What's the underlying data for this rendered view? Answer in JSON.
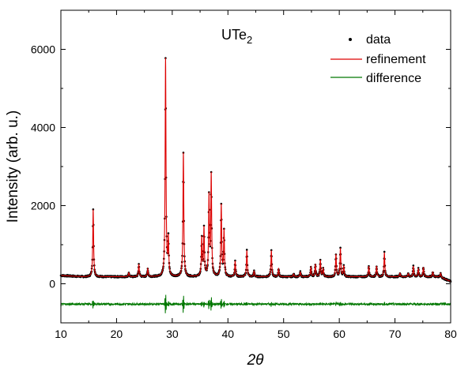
{
  "chart_data": {
    "type": "line",
    "title": "",
    "annotation": {
      "text": "UTe",
      "subscript": "2"
    },
    "xlabel": "2θ",
    "ylabel": "Intensity (arb. u.)",
    "xlim": [
      10,
      80
    ],
    "ylim": [
      -1000,
      7000
    ],
    "xticks": [
      10,
      20,
      30,
      40,
      50,
      60,
      70,
      80
    ],
    "yticks": [
      0,
      2000,
      4000,
      6000
    ],
    "legend_position": "top-right",
    "grid": false,
    "colors": {
      "data": "#000000",
      "refinement": "#dd0000",
      "difference": "#007700"
    },
    "background": 180,
    "difference_offset": -520,
    "peaks": [
      {
        "x": 15.8,
        "y": 1900
      },
      {
        "x": 22.2,
        "y": 280
      },
      {
        "x": 24.0,
        "y": 500
      },
      {
        "x": 25.6,
        "y": 380
      },
      {
        "x": 28.8,
        "y": 5750
      },
      {
        "x": 29.3,
        "y": 1100
      },
      {
        "x": 32.0,
        "y": 3350
      },
      {
        "x": 35.3,
        "y": 1150
      },
      {
        "x": 35.7,
        "y": 1400
      },
      {
        "x": 36.6,
        "y": 2200
      },
      {
        "x": 37.0,
        "y": 2750
      },
      {
        "x": 38.8,
        "y": 2000
      },
      {
        "x": 39.3,
        "y": 1350
      },
      {
        "x": 41.3,
        "y": 580
      },
      {
        "x": 43.4,
        "y": 850
      },
      {
        "x": 44.7,
        "y": 320
      },
      {
        "x": 47.8,
        "y": 850
      },
      {
        "x": 49.1,
        "y": 380
      },
      {
        "x": 51.8,
        "y": 250
      },
      {
        "x": 53.0,
        "y": 300
      },
      {
        "x": 54.9,
        "y": 420
      },
      {
        "x": 55.7,
        "y": 500
      },
      {
        "x": 56.6,
        "y": 600
      },
      {
        "x": 57.1,
        "y": 380
      },
      {
        "x": 59.4,
        "y": 750
      },
      {
        "x": 60.2,
        "y": 900
      },
      {
        "x": 60.8,
        "y": 450
      },
      {
        "x": 65.3,
        "y": 450
      },
      {
        "x": 66.7,
        "y": 450
      },
      {
        "x": 68.1,
        "y": 800
      },
      {
        "x": 70.9,
        "y": 270
      },
      {
        "x": 72.4,
        "y": 260
      },
      {
        "x": 73.3,
        "y": 450
      },
      {
        "x": 74.2,
        "y": 380
      },
      {
        "x": 75.1,
        "y": 420
      },
      {
        "x": 76.8,
        "y": 300
      },
      {
        "x": 78.2,
        "y": 280
      }
    ],
    "series": [
      {
        "name": "data",
        "style": "dots"
      },
      {
        "name": "refinement",
        "style": "line"
      },
      {
        "name": "difference",
        "style": "line"
      }
    ]
  }
}
